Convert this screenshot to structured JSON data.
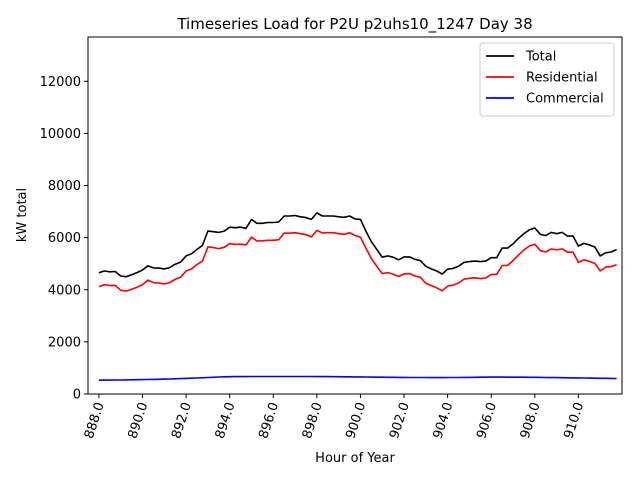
{
  "chart_data": {
    "type": "line",
    "title": "Timeseries Load for P2U p2uhs10_1247  Day 38",
    "xlabel": "Hour of Year",
    "ylabel": "kW total",
    "xlim": [
      887.5,
      912.0
    ],
    "ylim": [
      0,
      13700
    ],
    "x_ticks": [
      888,
      890,
      892,
      894,
      896,
      898,
      900,
      902,
      904,
      906,
      908,
      910
    ],
    "x_tick_labels": [
      "888.0",
      "890.0",
      "892.0",
      "894.0",
      "896.0",
      "898.0",
      "900.0",
      "902.0",
      "904.0",
      "906.0",
      "908.0",
      "910.0"
    ],
    "y_ticks": [
      0,
      2000,
      4000,
      6000,
      8000,
      10000,
      12000
    ],
    "y_tick_labels": [
      "0",
      "2000",
      "4000",
      "6000",
      "8000",
      "10000",
      "12000"
    ],
    "legend_position": "top-right",
    "x": [
      888.0,
      888.25,
      888.5,
      888.75,
      889.0,
      889.25,
      889.5,
      889.75,
      890.0,
      890.25,
      890.5,
      890.75,
      891.0,
      891.25,
      891.5,
      891.75,
      892.0,
      892.25,
      892.5,
      892.75,
      893.0,
      893.25,
      893.5,
      893.75,
      894.0,
      894.25,
      894.5,
      894.75,
      895.0,
      895.25,
      895.5,
      895.75,
      896.0,
      896.25,
      896.5,
      896.75,
      897.0,
      897.25,
      897.5,
      897.75,
      898.0,
      898.25,
      898.5,
      898.75,
      899.0,
      899.25,
      899.5,
      899.75,
      900.0,
      900.25,
      900.5,
      900.75,
      901.0,
      901.25,
      901.5,
      901.75,
      902.0,
      902.25,
      902.5,
      902.75,
      903.0,
      903.25,
      903.5,
      903.75,
      904.0,
      904.25,
      904.5,
      904.75,
      905.0,
      905.25,
      905.5,
      905.75,
      906.0,
      906.25,
      906.5,
      906.75,
      907.0,
      907.25,
      907.5,
      907.75,
      908.0,
      908.25,
      908.5,
      908.75,
      909.0,
      909.25,
      909.5,
      909.75,
      910.0,
      910.25,
      910.5,
      910.75,
      911.0,
      911.25,
      911.5,
      911.75
    ],
    "series": [
      {
        "name": "Total",
        "color": "#000000",
        "values": [
          4650,
          4720,
          4690,
          4700,
          4530,
          4500,
          4580,
          4660,
          4760,
          4920,
          4840,
          4830,
          4800,
          4850,
          4980,
          5060,
          5300,
          5380,
          5550,
          5700,
          6250,
          6230,
          6200,
          6250,
          6400,
          6380,
          6400,
          6360,
          6700,
          6550,
          6550,
          6580,
          6580,
          6600,
          6830,
          6830,
          6850,
          6800,
          6770,
          6700,
          6950,
          6830,
          6830,
          6830,
          6800,
          6780,
          6830,
          6720,
          6700,
          6250,
          5850,
          5550,
          5250,
          5300,
          5250,
          5150,
          5260,
          5260,
          5170,
          5120,
          4900,
          4800,
          4720,
          4600,
          4790,
          4820,
          4900,
          5050,
          5080,
          5100,
          5080,
          5100,
          5230,
          5230,
          5600,
          5600,
          5760,
          5980,
          6150,
          6300,
          6370,
          6130,
          6080,
          6200,
          6150,
          6200,
          6060,
          6060,
          5680,
          5780,
          5720,
          5640,
          5300,
          5420,
          5450,
          5540
        ]
      },
      {
        "name": "Residential",
        "color": "#ff0000",
        "values": [
          4120,
          4200,
          4160,
          4170,
          3980,
          3950,
          4020,
          4100,
          4200,
          4370,
          4270,
          4260,
          4220,
          4280,
          4400,
          4480,
          4720,
          4800,
          4970,
          5100,
          5650,
          5620,
          5580,
          5630,
          5770,
          5740,
          5750,
          5720,
          6020,
          5870,
          5880,
          5900,
          5900,
          5920,
          6180,
          6170,
          6190,
          6150,
          6110,
          6030,
          6280,
          6180,
          6190,
          6190,
          6150,
          6130,
          6190,
          6080,
          6020,
          5600,
          5200,
          4900,
          4620,
          4660,
          4600,
          4510,
          4610,
          4620,
          4530,
          4480,
          4250,
          4160,
          4070,
          3960,
          4140,
          4180,
          4260,
          4410,
          4440,
          4460,
          4430,
          4450,
          4590,
          4590,
          4930,
          4930,
          5120,
          5330,
          5530,
          5680,
          5750,
          5500,
          5450,
          5570,
          5530,
          5570,
          5440,
          5440,
          5050,
          5150,
          5090,
          5010,
          4720,
          4870,
          4890,
          4960
        ]
      },
      {
        "name": "Commercial",
        "color": "#0000ff",
        "values": [
          530,
          532,
          534,
          536,
          538,
          540,
          544,
          548,
          552,
          556,
          560,
          565,
          570,
          575,
          582,
          590,
          598,
          606,
          614,
          622,
          632,
          642,
          652,
          660,
          665,
          667,
          668,
          668,
          670,
          670,
          671,
          671,
          672,
          672,
          672,
          672,
          671,
          671,
          670,
          670,
          669,
          668,
          667,
          665,
          663,
          661,
          659,
          657,
          655,
          652,
          649,
          646,
          643,
          641,
          639,
          637,
          636,
          635,
          634,
          633,
          632,
          631,
          631,
          631,
          632,
          633,
          634,
          636,
          638,
          640,
          643,
          646,
          648,
          648,
          647,
          646,
          645,
          644,
          643,
          641,
          639,
          637,
          634,
          631,
          628,
          625,
          622,
          619,
          616,
          613,
          610,
          607,
          604,
          601,
          598,
          596
        ]
      }
    ]
  }
}
